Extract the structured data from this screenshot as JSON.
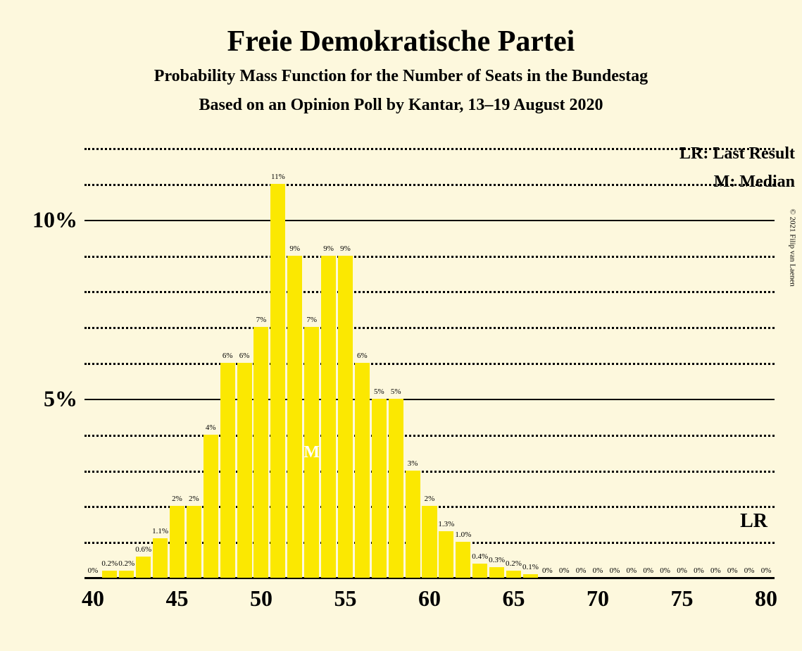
{
  "title": "Freie Demokratische Partei",
  "subtitle": "Probability Mass Function for the Number of Seats in the Bundestag",
  "subtitle2": "Based on an Opinion Poll by Kantar, 13–19 August 2020",
  "legend": {
    "lr": "LR: Last Result",
    "m": "M: Median"
  },
  "lr_marker": "LR",
  "median_marker": "M",
  "copyright": "© 2021 Filip van Laenen",
  "chart": {
    "type": "bar",
    "background_color": "#fdf8dd",
    "bar_color": "#fbe801",
    "grid_solid_color": "#000000",
    "grid_dotted_color": "#000000",
    "text_color": "#1a1a1a",
    "ylim": [
      0,
      12
    ],
    "y_major_ticks": [
      5,
      10
    ],
    "y_minor_step": 1,
    "xlim": [
      40,
      80
    ],
    "x_major_step": 5,
    "lr_y_position": 1.3,
    "median_seat": 53,
    "bar_gap_ratio": 0.12,
    "bars": [
      {
        "seat": 40,
        "value": 0,
        "label": "0%"
      },
      {
        "seat": 41,
        "value": 0.2,
        "label": "0.2%"
      },
      {
        "seat": 42,
        "value": 0.2,
        "label": "0.2%"
      },
      {
        "seat": 43,
        "value": 0.6,
        "label": "0.6%"
      },
      {
        "seat": 44,
        "value": 1.1,
        "label": "1.1%"
      },
      {
        "seat": 45,
        "value": 2,
        "label": "2%"
      },
      {
        "seat": 46,
        "value": 2,
        "label": "2%"
      },
      {
        "seat": 47,
        "value": 4,
        "label": "4%"
      },
      {
        "seat": 48,
        "value": 6,
        "label": "6%"
      },
      {
        "seat": 49,
        "value": 6,
        "label": "6%"
      },
      {
        "seat": 50,
        "value": 7,
        "label": "7%"
      },
      {
        "seat": 51,
        "value": 11,
        "label": "11%"
      },
      {
        "seat": 52,
        "value": 9,
        "label": "9%"
      },
      {
        "seat": 53,
        "value": 7,
        "label": "7%"
      },
      {
        "seat": 54,
        "value": 9,
        "label": "9%"
      },
      {
        "seat": 55,
        "value": 9,
        "label": "9%"
      },
      {
        "seat": 56,
        "value": 6,
        "label": "6%"
      },
      {
        "seat": 57,
        "value": 5,
        "label": "5%"
      },
      {
        "seat": 58,
        "value": 5,
        "label": "5%"
      },
      {
        "seat": 59,
        "value": 3,
        "label": "3%"
      },
      {
        "seat": 60,
        "value": 2,
        "label": "2%"
      },
      {
        "seat": 61,
        "value": 1.3,
        "label": "1.3%"
      },
      {
        "seat": 62,
        "value": 1.0,
        "label": "1.0%"
      },
      {
        "seat": 63,
        "value": 0.4,
        "label": "0.4%"
      },
      {
        "seat": 64,
        "value": 0.3,
        "label": "0.3%"
      },
      {
        "seat": 65,
        "value": 0.2,
        "label": "0.2%"
      },
      {
        "seat": 66,
        "value": 0.1,
        "label": "0.1%"
      },
      {
        "seat": 67,
        "value": 0,
        "label": "0%"
      },
      {
        "seat": 68,
        "value": 0,
        "label": "0%"
      },
      {
        "seat": 69,
        "value": 0,
        "label": "0%"
      },
      {
        "seat": 70,
        "value": 0,
        "label": "0%"
      },
      {
        "seat": 71,
        "value": 0,
        "label": "0%"
      },
      {
        "seat": 72,
        "value": 0,
        "label": "0%"
      },
      {
        "seat": 73,
        "value": 0,
        "label": "0%"
      },
      {
        "seat": 74,
        "value": 0,
        "label": "0%"
      },
      {
        "seat": 75,
        "value": 0,
        "label": "0%"
      },
      {
        "seat": 76,
        "value": 0,
        "label": "0%"
      },
      {
        "seat": 77,
        "value": 0,
        "label": "0%"
      },
      {
        "seat": 78,
        "value": 0,
        "label": "0%"
      },
      {
        "seat": 79,
        "value": 0,
        "label": "0%"
      },
      {
        "seat": 80,
        "value": 0,
        "label": "0%"
      }
    ],
    "y_tick_labels": {
      "5": "5%",
      "10": "10%"
    }
  }
}
